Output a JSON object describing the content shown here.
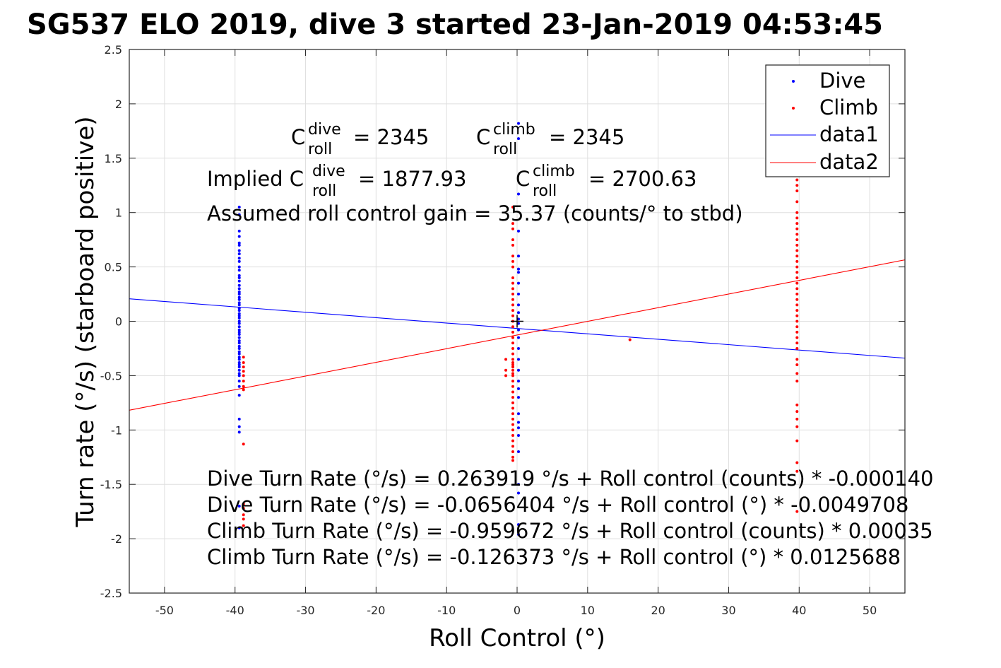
{
  "chart_data": {
    "type": "scatter",
    "title": "SG537 ELO 2019, dive 3 started 23-Jan-2019 04:53:45",
    "xlabel": "Roll Control (°)",
    "ylabel": "Turn rate (°/s) (starboard positive)",
    "xlim": [
      -55,
      55
    ],
    "ylim": [
      -2.5,
      2.5
    ],
    "grid": true,
    "legend_position": "top-right",
    "xticks": [
      -50,
      -40,
      -30,
      -20,
      -10,
      0,
      10,
      20,
      30,
      40,
      50
    ],
    "yticks": [
      -2.5,
      -2,
      -1.5,
      -1,
      -0.5,
      0,
      0.5,
      1,
      1.5,
      2,
      2.5
    ],
    "xtick_labels": [
      "-50",
      "-40",
      "-30",
      "-20",
      "-10",
      "0",
      "10",
      "20",
      "30",
      "40",
      "50"
    ],
    "ytick_labels": [
      "-2.5",
      "-2",
      "-1.5",
      "-1",
      "-0.5",
      "0",
      "0.5",
      "1",
      "1.5",
      "2",
      "2.5"
    ],
    "series": [
      {
        "name": "Dive",
        "kind": "points",
        "color": "#0000ff",
        "x": [
          -39.4,
          -39.4,
          -39.4,
          -39.4,
          -39.4,
          -39.4,
          -39.4,
          -39.4,
          -39.4,
          -39.4,
          -39.4,
          -39.4,
          -39.4,
          -39.4,
          -39.4,
          -39.4,
          -39.4,
          -39.4,
          -39.4,
          -39.4,
          -39.4,
          -39.4,
          -39.4,
          -39.4,
          -39.4,
          -39.4,
          -39.4,
          -39.4,
          -39.4,
          -39.4,
          -39.4,
          -39.4,
          -39.4,
          -39.4,
          -39.4,
          -39.4,
          -39.4,
          -39.4,
          -39.4,
          -39.4,
          -39.4,
          -39.4,
          -39.4,
          -39.4,
          -39.4,
          -39.4,
          -39.4,
          -39.4,
          -39.4,
          -39.4,
          -39.4,
          -39.4,
          -39.4,
          -39.4,
          -39.4,
          -39.4,
          -39.4,
          0.2,
          0.2,
          0.2,
          0.2,
          0.2,
          0.2,
          0.2,
          0.2,
          0.2,
          0.2,
          0.2,
          0.2,
          0.2,
          0.2,
          0.2,
          0.2,
          0.2,
          0.2,
          0.2,
          0.2,
          0.2,
          0.2,
          0.2,
          0.2,
          0.2,
          0.2,
          0.2,
          0.2,
          0.2,
          0.2
        ],
        "y": [
          1.05,
          0.98,
          0.83,
          0.78,
          0.72,
          0.7,
          0.65,
          0.62,
          0.58,
          0.55,
          0.5,
          0.47,
          0.42,
          0.4,
          0.37,
          0.33,
          0.3,
          0.27,
          0.25,
          0.22,
          0.2,
          0.17,
          0.15,
          0.12,
          0.1,
          0.07,
          0.05,
          0.03,
          0.0,
          -0.02,
          -0.05,
          -0.08,
          -0.1,
          -0.12,
          -0.15,
          -0.18,
          -0.2,
          -0.23,
          -0.25,
          -0.28,
          -0.3,
          -0.33,
          -0.35,
          -0.38,
          -0.4,
          -0.42,
          -0.45,
          -0.48,
          -0.5,
          -0.55,
          -0.6,
          -0.68,
          -0.9,
          -0.97,
          -1.02,
          -1.7,
          -1.9,
          1.82,
          1.68,
          1.17,
          0.83,
          0.6,
          0.48,
          0.45,
          0.35,
          0.25,
          0.15,
          0.08,
          0.02,
          -0.02,
          -0.08,
          -0.15,
          -0.25,
          -0.35,
          -0.45,
          -0.55,
          -0.62,
          -0.7,
          -0.85,
          -0.93,
          -0.98,
          -1.05,
          -1.2,
          -1.5,
          -1.58,
          -1.87,
          -1.96
        ]
      },
      {
        "name": "Climb",
        "kind": "points",
        "color": "#ff0000",
        "x": [
          -38.8,
          -38.8,
          -38.8,
          -38.8,
          -38.8,
          -38.8,
          -38.8,
          -38.8,
          -38.8,
          -38.8,
          -38.8,
          -38.8,
          -38.8,
          -38.8,
          -0.6,
          -0.6,
          -0.6,
          -0.6,
          -0.6,
          -0.6,
          -0.6,
          -0.6,
          -0.6,
          -0.6,
          -0.6,
          -0.6,
          -0.6,
          -0.6,
          -0.6,
          -0.6,
          -0.6,
          -0.6,
          -0.6,
          -0.6,
          -0.6,
          -0.6,
          -0.6,
          -0.6,
          -0.6,
          -0.6,
          -0.6,
          -0.6,
          -0.6,
          -0.6,
          -0.6,
          -0.6,
          -0.6,
          -0.6,
          -0.6,
          -0.6,
          -0.6,
          -0.6,
          -0.6,
          -0.6,
          -0.6,
          -0.6,
          -0.6,
          -0.6,
          -0.6,
          -0.6,
          -1.6,
          -1.6,
          -1.6,
          16.0,
          39.7,
          39.7,
          39.7,
          39.7,
          39.7,
          39.7,
          39.7,
          39.7,
          39.7,
          39.7,
          39.7,
          39.7,
          39.7,
          39.7,
          39.7,
          39.7,
          39.7,
          39.7,
          39.7,
          39.7,
          39.7,
          39.7,
          39.7,
          39.7,
          39.7,
          39.7,
          39.7,
          39.7,
          39.7,
          39.7,
          39.7,
          39.7,
          39.7,
          39.7,
          39.7,
          39.7,
          39.7,
          39.7,
          39.7,
          39.7,
          39.7,
          39.7
        ],
        "y": [
          -0.33,
          -0.38,
          -0.42,
          -0.46,
          -0.5,
          -0.55,
          -0.6,
          -0.63,
          -1.13,
          -1.68,
          -1.72,
          -1.78,
          -1.82,
          -1.88,
          1.05,
          0.9,
          0.85,
          0.75,
          0.7,
          0.6,
          0.55,
          0.5,
          0.4,
          0.35,
          0.3,
          0.25,
          0.2,
          0.15,
          0.1,
          0.05,
          0.0,
          -0.05,
          -0.1,
          -0.15,
          -0.2,
          -0.25,
          -0.3,
          -0.35,
          -0.4,
          -0.45,
          -0.5,
          -0.55,
          -0.6,
          -0.65,
          -0.7,
          -0.75,
          -0.8,
          -0.85,
          -0.9,
          -0.95,
          -1.0,
          -1.05,
          -1.1,
          -1.15,
          -1.2,
          -1.25,
          -1.28,
          -0.38,
          -0.42,
          -0.48,
          -0.35,
          -0.45,
          -0.5,
          -0.17,
          1.3,
          1.25,
          1.2,
          1.1,
          1.0,
          0.95,
          0.9,
          0.85,
          0.8,
          0.75,
          0.7,
          0.65,
          0.6,
          0.55,
          0.5,
          0.45,
          0.4,
          0.35,
          0.3,
          0.25,
          0.2,
          0.15,
          0.1,
          0.05,
          0.0,
          -0.05,
          -0.1,
          -0.15,
          -0.2,
          -0.25,
          -0.35,
          -0.4,
          -0.48,
          -0.55,
          -0.77,
          -0.83,
          -0.9,
          -0.97,
          -1.1,
          -1.3,
          -1.38,
          -1.75
        ]
      },
      {
        "name": "data1",
        "kind": "line",
        "color": "#0000ff",
        "x": [
          -55,
          55
        ],
        "y": [
          0.207,
          -0.339
        ]
      },
      {
        "name": "data2",
        "kind": "line",
        "color": "#ff0000",
        "x": [
          -55,
          55
        ],
        "y": [
          -0.818,
          0.565
        ]
      }
    ],
    "legend": [
      "Dive",
      "Climb",
      "data1",
      "data2"
    ],
    "marker": {
      "x": 0,
      "y": 0,
      "symbol": "+",
      "color": "#000000"
    },
    "annotations": {
      "c_dive_value": "= 2345",
      "c_climb_value": "= 2345",
      "implied_prefix": "Implied C",
      "implied_dive_value": "= 1877.93",
      "implied_climb_value": "= 2700.63",
      "base_letter": "C",
      "sup_dive": "dive",
      "sup_climb": "climb",
      "sub_roll": "roll",
      "gain_line": "Assumed roll control gain = 35.37 (counts/° to stbd)",
      "fit_lines": [
        "Dive Turn Rate (°/s) = 0.263919 °/s + Roll control (counts) * -0.000140",
        "Dive Turn Rate (°/s) = -0.0656404 °/s + Roll control (°) * -0.0049708",
        "Climb Turn Rate (°/s) = -0.959672 °/s + Roll control (counts) * 0.00035",
        "Climb Turn Rate (°/s) = -0.126373 °/s + Roll control (°) * 0.0125688"
      ]
    }
  }
}
